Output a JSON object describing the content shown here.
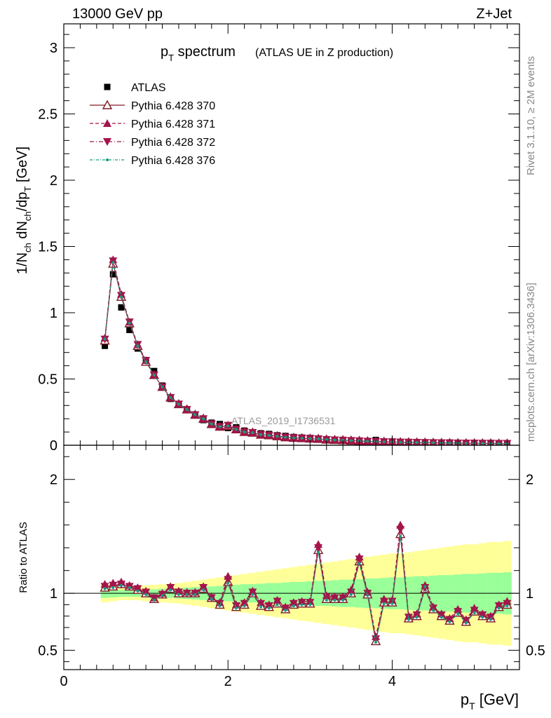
{
  "header": {
    "energy_label": "13000 GeV pp",
    "process_label": "Z+Jet"
  },
  "side": {
    "rivet_label": "Rivet 3.1.10, ≥ 2M events",
    "mcplots_label": "mcplots.cern.ch [arXiv:1306.3436]"
  },
  "chart_data": [
    {
      "type": "scatter",
      "panel": "main",
      "title": {
        "main": "p",
        "sub": "T",
        "rest": " spectrum",
        "note": "(ATLAS UE in Z production)"
      },
      "ylabel": "1/N_ch dN_ch/dp_T [GeV]",
      "watermark": "ATLAS_2019_I1736531",
      "xlim": [
        0,
        5.55
      ],
      "ylim": [
        0,
        3.18
      ],
      "yticks": [
        0,
        0.5,
        1,
        1.5,
        2,
        2.5,
        3
      ],
      "ytick_labels": [
        "0",
        "0.5",
        "1",
        "1.5",
        "2",
        "2.5",
        "3"
      ],
      "legend_position": "top-left",
      "x": [
        0.5,
        0.6,
        0.7,
        0.8,
        0.9,
        1.0,
        1.1,
        1.2,
        1.3,
        1.4,
        1.5,
        1.6,
        1.7,
        1.8,
        1.9,
        2.0,
        2.1,
        2.2,
        2.3,
        2.4,
        2.5,
        2.6,
        2.7,
        2.8,
        2.9,
        3.0,
        3.1,
        3.2,
        3.3,
        3.4,
        3.5,
        3.6,
        3.7,
        3.8,
        3.9,
        4.0,
        4.1,
        4.2,
        4.3,
        4.4,
        4.5,
        4.6,
        4.7,
        4.8,
        4.9,
        5.0,
        5.1,
        5.2,
        5.3,
        5.4
      ],
      "series": [
        {
          "name": "ATLAS",
          "color": "#000000",
          "marker": "square",
          "values": [
            0.75,
            1.29,
            1.04,
            0.87,
            0.73,
            0.63,
            0.56,
            0.45,
            0.35,
            0.31,
            0.27,
            0.23,
            0.19,
            0.17,
            0.16,
            0.13,
            0.135,
            0.11,
            0.095,
            0.09,
            0.085,
            0.075,
            0.07,
            0.062,
            0.058,
            0.055,
            0.045,
            0.045,
            0.042,
            0.04,
            0.035,
            0.032,
            0.03,
            0.04,
            0.028,
            0.028,
            0.025,
            0.025,
            0.024,
            0.022,
            0.021,
            0.02,
            0.02,
            0.019,
            0.018,
            0.018,
            0.017,
            0.017,
            0.016,
            0.016
          ]
        },
        {
          "name": "Pythia 6.428 370",
          "color": "#7f1a25",
          "marker": "triangle-up-open",
          "dash": "",
          "values": [
            0.79,
            1.37,
            1.12,
            0.92,
            0.75,
            0.63,
            0.53,
            0.44,
            0.36,
            0.31,
            0.27,
            0.23,
            0.2,
            0.16,
            0.14,
            0.145,
            0.12,
            0.1,
            0.095,
            0.08,
            0.075,
            0.068,
            0.06,
            0.056,
            0.053,
            0.05,
            0.048,
            0.043,
            0.04,
            0.038,
            0.035,
            0.033,
            0.03,
            0.028,
            0.026,
            0.025,
            0.023,
            0.022,
            0.021,
            0.02,
            0.019,
            0.018,
            0.017,
            0.016,
            0.015,
            0.015,
            0.014,
            0.014,
            0.013,
            0.013
          ]
        },
        {
          "name": "Pythia 6.428 371",
          "color": "#a3154b",
          "marker": "triangle-up",
          "dash": "5,3",
          "values": [
            0.81,
            1.4,
            1.14,
            0.93,
            0.76,
            0.64,
            0.53,
            0.44,
            0.36,
            0.31,
            0.27,
            0.23,
            0.2,
            0.16,
            0.14,
            0.15,
            0.12,
            0.1,
            0.097,
            0.082,
            0.076,
            0.069,
            0.061,
            0.057,
            0.053,
            0.05,
            0.048,
            0.043,
            0.04,
            0.038,
            0.035,
            0.033,
            0.03,
            0.028,
            0.026,
            0.025,
            0.023,
            0.022,
            0.021,
            0.02,
            0.019,
            0.018,
            0.017,
            0.016,
            0.015,
            0.015,
            0.014,
            0.014,
            0.013,
            0.013
          ]
        },
        {
          "name": "Pythia 6.428 372",
          "color": "#a3154b",
          "marker": "triangle-down",
          "dash": "6,3,1,3",
          "values": [
            0.8,
            1.39,
            1.13,
            0.93,
            0.76,
            0.64,
            0.53,
            0.44,
            0.36,
            0.31,
            0.27,
            0.23,
            0.2,
            0.16,
            0.14,
            0.15,
            0.12,
            0.1,
            0.096,
            0.081,
            0.075,
            0.068,
            0.06,
            0.056,
            0.053,
            0.05,
            0.048,
            0.043,
            0.04,
            0.038,
            0.035,
            0.033,
            0.03,
            0.028,
            0.026,
            0.025,
            0.023,
            0.022,
            0.021,
            0.02,
            0.019,
            0.018,
            0.017,
            0.016,
            0.015,
            0.015,
            0.014,
            0.014,
            0.013,
            0.013
          ]
        },
        {
          "name": "Pythia 6.428 376",
          "color": "#1a9b7d",
          "marker": "small-dot",
          "dash": "4,2,1,2",
          "values": [
            0.8,
            1.38,
            1.12,
            0.92,
            0.75,
            0.63,
            0.53,
            0.44,
            0.36,
            0.31,
            0.27,
            0.23,
            0.2,
            0.16,
            0.14,
            0.145,
            0.12,
            0.1,
            0.095,
            0.08,
            0.075,
            0.068,
            0.06,
            0.056,
            0.053,
            0.05,
            0.048,
            0.043,
            0.04,
            0.038,
            0.035,
            0.033,
            0.03,
            0.028,
            0.026,
            0.025,
            0.023,
            0.022,
            0.021,
            0.02,
            0.019,
            0.018,
            0.017,
            0.016,
            0.015,
            0.015,
            0.014,
            0.014,
            0.013,
            0.013
          ]
        }
      ]
    },
    {
      "type": "scatter",
      "panel": "ratio",
      "ylabel": "Ratio to ATLAS",
      "xlabel": {
        "main": "p",
        "sub": "T",
        "rest": " [GeV]"
      },
      "xlim": [
        0,
        5.55
      ],
      "ylim": [
        0.33,
        2.3
      ],
      "xticks": [
        0,
        2,
        4
      ],
      "xtick_labels": [
        "0",
        "2",
        "4"
      ],
      "yticks": [
        0.5,
        1,
        2
      ],
      "ytick_labels": [
        "0.5",
        "1",
        "2"
      ],
      "reference_line": 1,
      "x": [
        0.5,
        0.6,
        0.7,
        0.8,
        0.9,
        1.0,
        1.1,
        1.2,
        1.3,
        1.4,
        1.5,
        1.6,
        1.7,
        1.8,
        1.9,
        2.0,
        2.1,
        2.2,
        2.3,
        2.4,
        2.5,
        2.6,
        2.7,
        2.8,
        2.9,
        3.0,
        3.1,
        3.2,
        3.3,
        3.4,
        3.5,
        3.6,
        3.7,
        3.8,
        3.9,
        4.0,
        4.1,
        4.2,
        4.3,
        4.4,
        4.5,
        4.6,
        4.7,
        4.8,
        4.9,
        5.0,
        5.1,
        5.2,
        5.3,
        5.4
      ],
      "band_inner": [
        0.04,
        0.035,
        0.03,
        0.03,
        0.03,
        0.035,
        0.035,
        0.04,
        0.04,
        0.045,
        0.05,
        0.055,
        0.06,
        0.06,
        0.065,
        0.07,
        0.075,
        0.08,
        0.08,
        0.085,
        0.09,
        0.09,
        0.095,
        0.1,
        0.1,
        0.105,
        0.11,
        0.11,
        0.115,
        0.12,
        0.12,
        0.125,
        0.13,
        0.13,
        0.135,
        0.14,
        0.14,
        0.145,
        0.15,
        0.15,
        0.155,
        0.16,
        0.16,
        0.165,
        0.17,
        0.17,
        0.175,
        0.18,
        0.18,
        0.185
      ],
      "band_outer": [
        0.08,
        0.07,
        0.06,
        0.06,
        0.06,
        0.07,
        0.075,
        0.08,
        0.085,
        0.09,
        0.1,
        0.11,
        0.12,
        0.13,
        0.14,
        0.15,
        0.16,
        0.17,
        0.18,
        0.19,
        0.2,
        0.21,
        0.22,
        0.23,
        0.24,
        0.25,
        0.26,
        0.27,
        0.28,
        0.29,
        0.3,
        0.31,
        0.32,
        0.33,
        0.34,
        0.35,
        0.35,
        0.36,
        0.37,
        0.38,
        0.39,
        0.4,
        0.41,
        0.42,
        0.43,
        0.43,
        0.44,
        0.45,
        0.45,
        0.46
      ],
      "series": [
        {
          "name": "Pythia 6.428 370",
          "color": "#7f1a25",
          "marker": "triangle-up-open",
          "dash": "",
          "values": [
            1.05,
            1.06,
            1.08,
            1.06,
            1.03,
            1.0,
            0.95,
            0.99,
            1.04,
            1.0,
            1.0,
            1.0,
            1.04,
            0.96,
            0.9,
            1.1,
            0.88,
            0.9,
            1.0,
            0.89,
            0.88,
            0.91,
            0.86,
            0.9,
            0.91,
            0.91,
            1.38,
            0.95,
            0.95,
            0.95,
            1.0,
            1.28,
            0.99,
            0.58,
            0.92,
            0.92,
            1.52,
            0.78,
            0.8,
            1.04,
            0.86,
            0.8,
            0.76,
            0.83,
            0.75,
            0.84,
            0.8,
            0.78,
            0.88,
            0.9
          ]
        },
        {
          "name": "Pythia 6.428 371",
          "color": "#a3154b",
          "marker": "triangle-up",
          "dash": "5,3",
          "values": [
            1.08,
            1.09,
            1.1,
            1.07,
            1.05,
            1.02,
            0.96,
            1.0,
            1.06,
            1.02,
            1.01,
            1.01,
            1.06,
            0.97,
            0.92,
            1.15,
            0.9,
            0.92,
            1.02,
            0.92,
            0.9,
            0.94,
            0.88,
            0.92,
            0.93,
            0.93,
            1.43,
            0.98,
            0.97,
            0.97,
            1.03,
            1.32,
            1.01,
            0.62,
            0.95,
            0.94,
            1.6,
            0.8,
            0.82,
            1.07,
            0.88,
            0.82,
            0.78,
            0.86,
            0.77,
            0.87,
            0.82,
            0.8,
            0.9,
            0.93
          ]
        },
        {
          "name": "Pythia 6.428 372",
          "color": "#a3154b",
          "marker": "triangle-down",
          "dash": "6,3,1,3",
          "values": [
            1.06,
            1.07,
            1.08,
            1.06,
            1.04,
            1.01,
            0.96,
            0.99,
            1.05,
            1.01,
            1.0,
            1.0,
            1.05,
            0.96,
            0.91,
            1.12,
            0.89,
            0.91,
            1.01,
            0.91,
            0.89,
            0.93,
            0.87,
            0.91,
            0.92,
            0.92,
            1.4,
            0.97,
            0.96,
            0.96,
            1.01,
            1.3,
            1.0,
            0.6,
            0.93,
            0.93,
            1.56,
            0.79,
            0.81,
            1.05,
            0.87,
            0.81,
            0.77,
            0.84,
            0.76,
            0.85,
            0.81,
            0.79,
            0.89,
            0.91
          ]
        },
        {
          "name": "Pythia 6.428 376",
          "color": "#1a9b7d",
          "marker": "small-dot",
          "dash": "4,2,1,2",
          "values": [
            1.04,
            1.05,
            1.07,
            1.05,
            1.02,
            0.99,
            0.94,
            0.98,
            1.03,
            0.99,
            0.99,
            0.99,
            1.03,
            0.95,
            0.89,
            1.09,
            0.87,
            0.89,
            0.99,
            0.88,
            0.87,
            0.9,
            0.85,
            0.89,
            0.9,
            0.9,
            1.36,
            0.94,
            0.94,
            0.94,
            0.99,
            1.26,
            0.98,
            0.57,
            0.91,
            0.91,
            1.5,
            0.77,
            0.79,
            1.06,
            0.85,
            0.79,
            0.75,
            0.82,
            0.74,
            0.83,
            0.79,
            0.77,
            0.87,
            0.89
          ]
        }
      ]
    }
  ]
}
